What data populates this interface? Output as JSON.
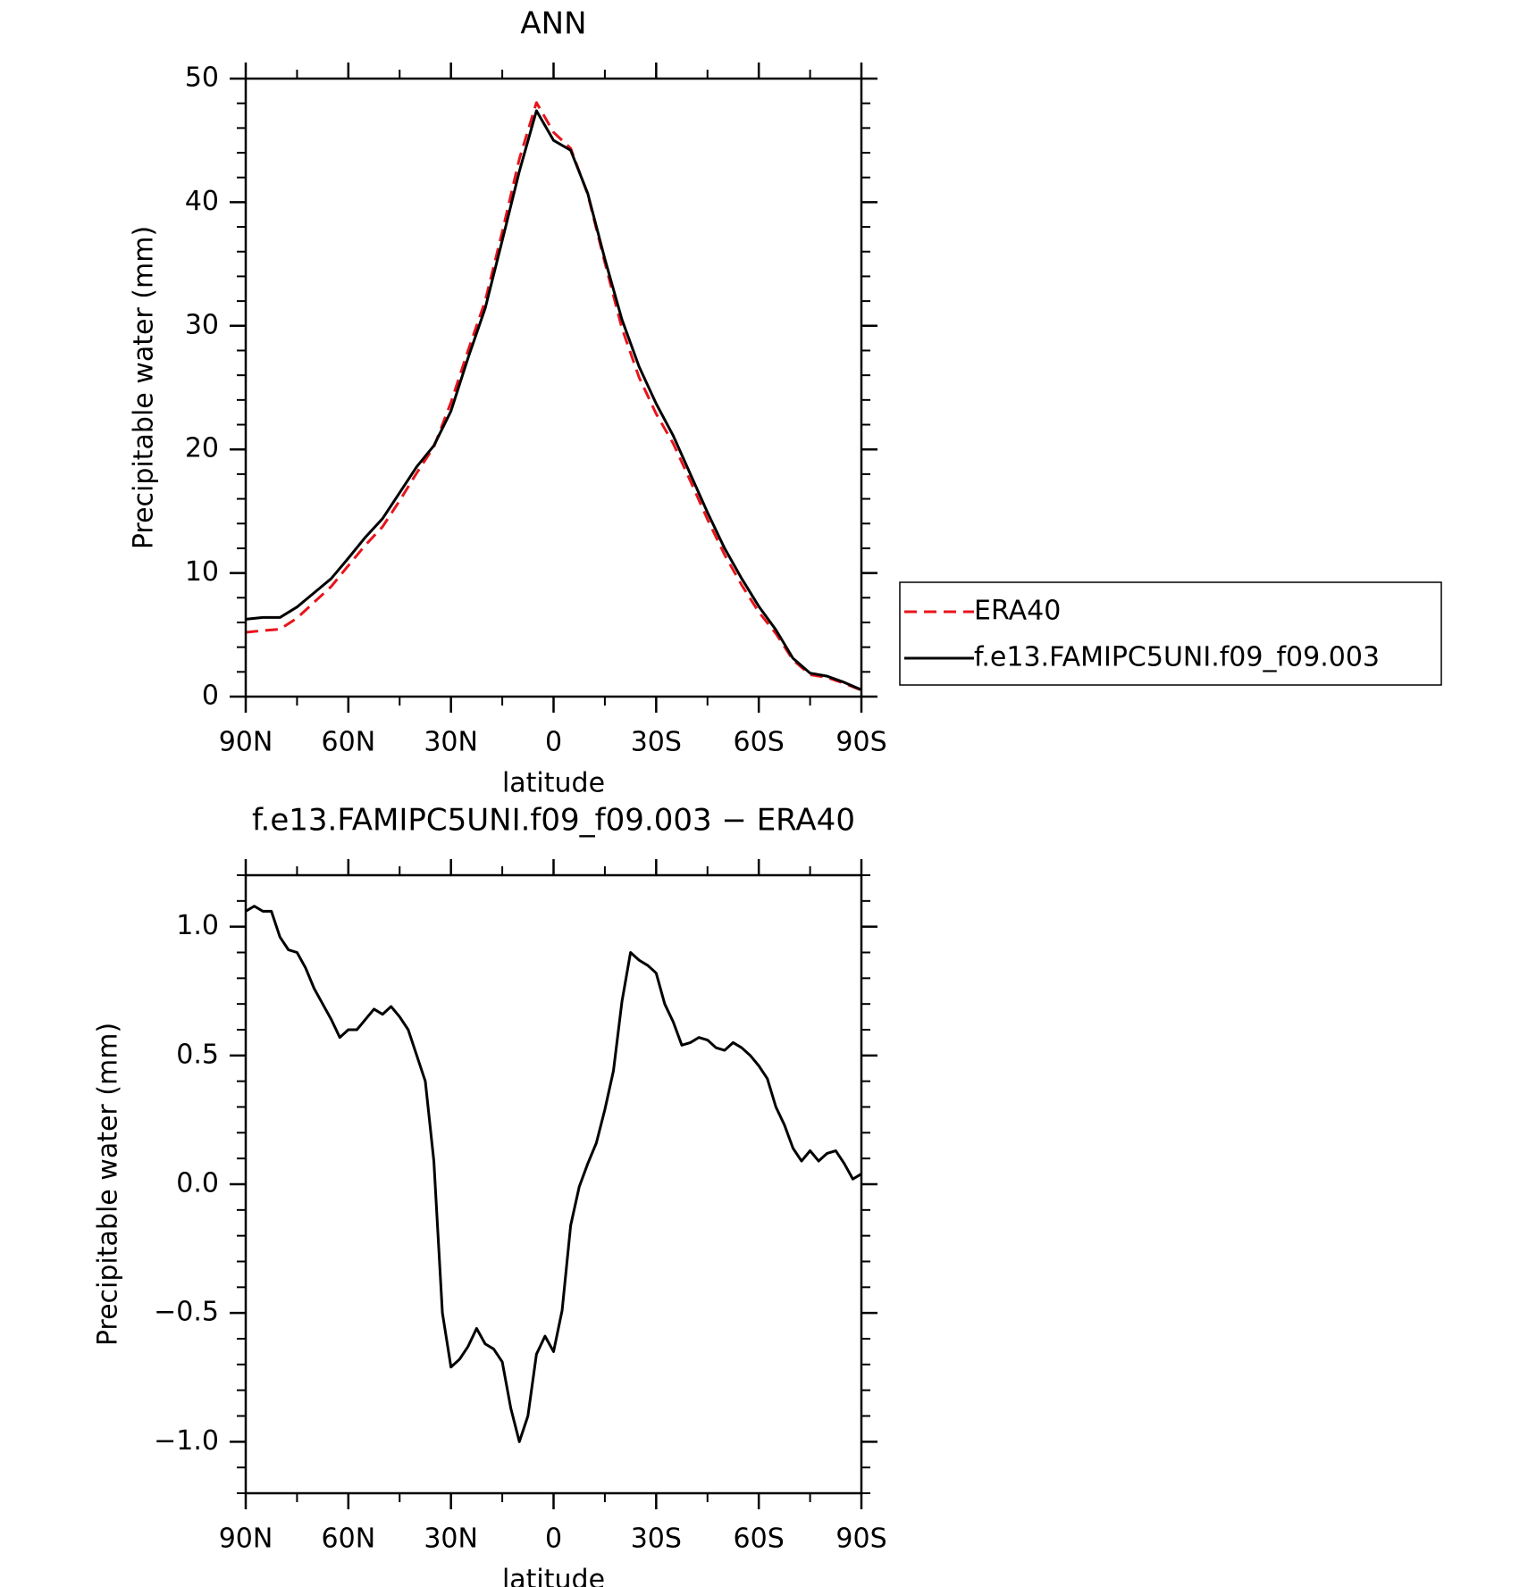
{
  "chart_data": [
    {
      "type": "line",
      "title": "ANN",
      "xlabel": "latitude",
      "ylabel": "Precipitable water (mm)",
      "xlim": [
        90,
        -90
      ],
      "xticks": [
        {
          "value": 90,
          "label": "90N"
        },
        {
          "value": 60,
          "label": "60N"
        },
        {
          "value": 30,
          "label": "30N"
        },
        0,
        {
          "value": -30,
          "label": "30S"
        },
        {
          "value": -60,
          "label": "60S"
        },
        {
          "value": -90,
          "label": "90S"
        }
      ],
      "ylim": [
        0,
        50
      ],
      "yticks": [
        0,
        10,
        20,
        30,
        40,
        50
      ],
      "x": [
        90,
        85,
        80,
        75,
        70,
        65,
        60,
        55,
        50,
        45,
        40,
        35,
        30,
        25,
        20,
        15,
        10,
        5,
        0,
        -5,
        -10,
        -15,
        -20,
        -25,
        -30,
        -35,
        -40,
        -45,
        -50,
        -55,
        -60,
        -65,
        -70,
        -75,
        -80,
        -85,
        -90
      ],
      "legend": "right",
      "series": [
        {
          "name": "ERA40",
          "color": "#e8141c",
          "style": "dashed",
          "values": [
            5.2,
            5.34,
            5.45,
            6.35,
            7.64,
            8.91,
            10.6,
            12.26,
            13.74,
            15.85,
            18.1,
            20.2,
            23.8,
            28.0,
            32.0,
            37.6,
            43.5,
            48.06,
            45.65,
            44.36,
            40.62,
            35.11,
            29.79,
            25.83,
            22.88,
            20.47,
            17.45,
            14.34,
            11.48,
            9.02,
            6.84,
            5.1,
            2.97,
            1.77,
            1.54,
            1.07,
            0.51
          ]
        },
        {
          "name": "f.e13.FAMIPC5UNI.f09_f09.003",
          "color": "#000000",
          "style": "solid",
          "values": [
            6.26,
            6.4,
            6.4,
            7.25,
            8.4,
            9.55,
            11.2,
            12.9,
            14.4,
            16.5,
            18.6,
            20.3,
            23.1,
            27.4,
            31.4,
            36.9,
            42.5,
            47.4,
            45.0,
            44.2,
            40.7,
            35.4,
            30.5,
            26.7,
            23.7,
            21.1,
            18.0,
            14.9,
            12.0,
            9.55,
            7.3,
            5.4,
            3.1,
            1.9,
            1.65,
            1.15,
            0.55
          ]
        }
      ]
    },
    {
      "type": "line",
      "title": "f.e13.FAMIPC5UNI.f09_f09.003 − ERA40",
      "xlabel": "latitude",
      "ylabel": "Precipitable water (mm)",
      "xlim": [
        90,
        -90
      ],
      "xticks": [
        {
          "value": 90,
          "label": "90N"
        },
        {
          "value": 60,
          "label": "60N"
        },
        {
          "value": 30,
          "label": "30N"
        },
        0,
        {
          "value": -30,
          "label": "30S"
        },
        {
          "value": -60,
          "label": "60S"
        },
        {
          "value": -90,
          "label": "90S"
        }
      ],
      "ylim": [
        -1.2,
        1.2
      ],
      "yticks": [
        {
          "value": -1,
          "label": "−1.0"
        },
        {
          "value": -0.5,
          "label": "−0.5"
        },
        {
          "value": 0,
          "label": "0.0"
        },
        0.5,
        {
          "value": 1,
          "label": "1.0"
        }
      ],
      "x": [
        90,
        87.5,
        85,
        82.5,
        80,
        77.5,
        75,
        72.5,
        70,
        67.5,
        65,
        62.5,
        60,
        57.5,
        55,
        52.5,
        50,
        47.5,
        45,
        42.5,
        40,
        37.5,
        35,
        32.5,
        30,
        27.5,
        25,
        22.5,
        20,
        17.5,
        15,
        12.5,
        10,
        7.5,
        5,
        2.5,
        0,
        -2.5,
        -5,
        -7.5,
        -10,
        -12.5,
        -15,
        -17.5,
        -20,
        -22.5,
        -25,
        -27.5,
        -30,
        -32.5,
        -35,
        -37.5,
        -40,
        -42.5,
        -45,
        -47.5,
        -50,
        -52.5,
        -55,
        -57.5,
        -60,
        -62.5,
        -65,
        -67.5,
        -70,
        -72.5,
        -75,
        -77.5,
        -80,
        -82.5,
        -85,
        -87.5,
        -90
      ],
      "series": [
        {
          "color": "#000000",
          "style": "solid",
          "values": [
            1.06,
            1.08,
            1.06,
            1.06,
            0.96,
            0.91,
            0.9,
            0.84,
            0.76,
            0.7,
            0.64,
            0.57,
            0.6,
            0.6,
            0.64,
            0.68,
            0.66,
            0.69,
            0.65,
            0.6,
            0.5,
            0.4,
            0.09,
            -0.5,
            -0.71,
            -0.68,
            -0.63,
            -0.56,
            -0.62,
            -0.64,
            -0.69,
            -0.87,
            -1.0,
            -0.9,
            -0.66,
            -0.59,
            -0.65,
            -0.49,
            -0.16,
            -0.01,
            0.08,
            0.16,
            0.29,
            0.44,
            0.71,
            0.9,
            0.87,
            0.85,
            0.82,
            0.7,
            0.63,
            0.54,
            0.55,
            0.57,
            0.56,
            0.53,
            0.52,
            0.55,
            0.53,
            0.5,
            0.46,
            0.41,
            0.3,
            0.23,
            0.14,
            0.09,
            0.13,
            0.09,
            0.12,
            0.13,
            0.08,
            0.02,
            0.04
          ]
        }
      ]
    }
  ]
}
